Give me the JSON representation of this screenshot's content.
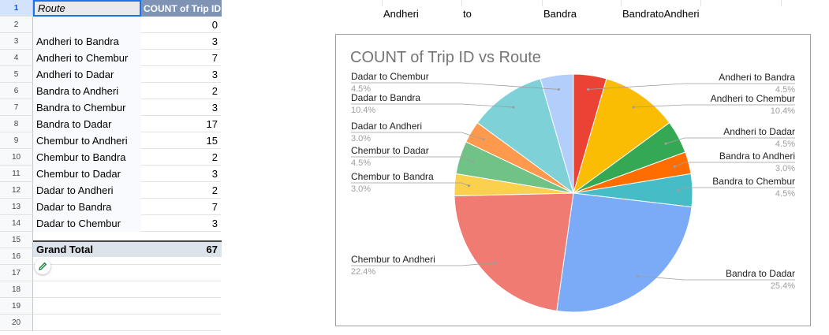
{
  "sheet": {
    "row_numbers": [
      "1",
      "2",
      "3",
      "4",
      "5",
      "6",
      "7",
      "8",
      "9",
      "10",
      "11",
      "12",
      "13",
      "14",
      "15",
      "16",
      "17",
      "18",
      "19",
      "20"
    ],
    "header": {
      "route": "Route",
      "count": "COUNT of Trip ID"
    },
    "blank_row": {
      "route": "",
      "count": "0"
    },
    "rows": [
      {
        "route": "Andheri to Bandra",
        "count": "3"
      },
      {
        "route": "Andheri to Chembur",
        "count": "7"
      },
      {
        "route": "Andheri to Dadar",
        "count": "3"
      },
      {
        "route": "Bandra to Andheri",
        "count": "2"
      },
      {
        "route": "Bandra to Chembur",
        "count": "3"
      },
      {
        "route": "Bandra to Dadar",
        "count": "17"
      },
      {
        "route": "Chembur to Andheri",
        "count": "15"
      },
      {
        "route": "Chembur to Bandra",
        "count": "2"
      },
      {
        "route": "Chembur to Dadar",
        "count": "3"
      },
      {
        "route": "Dadar to Andheri",
        "count": "2"
      },
      {
        "route": "Dadar to Bandra",
        "count": "7"
      },
      {
        "route": "Dadar to Chembur",
        "count": "3"
      }
    ],
    "grand_total": {
      "label": "Grand Total",
      "count": "67"
    },
    "top_cells": [
      "Andheri",
      "to",
      "Bandra",
      "BandratoAndheri"
    ]
  },
  "chart_data": {
    "type": "pie",
    "title": "COUNT of Trip ID vs Route",
    "slices": [
      {
        "label": "Andheri to Bandra",
        "value": 3,
        "pct": "4.5%",
        "color": "#ea4335"
      },
      {
        "label": "Andheri to Chembur",
        "value": 7,
        "pct": "10.4%",
        "color": "#fbbc04"
      },
      {
        "label": "Andheri to Dadar",
        "value": 3,
        "pct": "4.5%",
        "color": "#34a853"
      },
      {
        "label": "Bandra to Andheri",
        "value": 2,
        "pct": "3.0%",
        "color": "#ff6d01"
      },
      {
        "label": "Bandra to Chembur",
        "value": 3,
        "pct": "4.5%",
        "color": "#46bdc6"
      },
      {
        "label": "Bandra to Dadar",
        "value": 17,
        "pct": "25.4%",
        "color": "#7baaf7"
      },
      {
        "label": "Chembur to Andheri",
        "value": 15,
        "pct": "22.4%",
        "color": "#f07b72"
      },
      {
        "label": "Chembur to Bandra",
        "value": 2,
        "pct": "3.0%",
        "color": "#fcd04f"
      },
      {
        "label": "Chembur to Dadar",
        "value": 3,
        "pct": "4.5%",
        "color": "#71c287"
      },
      {
        "label": "Dadar to Andheri",
        "value": 2,
        "pct": "3.0%",
        "color": "#ff994d"
      },
      {
        "label": "Dadar to Bandra",
        "value": 7,
        "pct": "10.4%",
        "color": "#7ed1d7"
      },
      {
        "label": "Dadar to Chembur",
        "value": 3,
        "pct": "4.5%",
        "color": "#b3cefb"
      }
    ]
  }
}
